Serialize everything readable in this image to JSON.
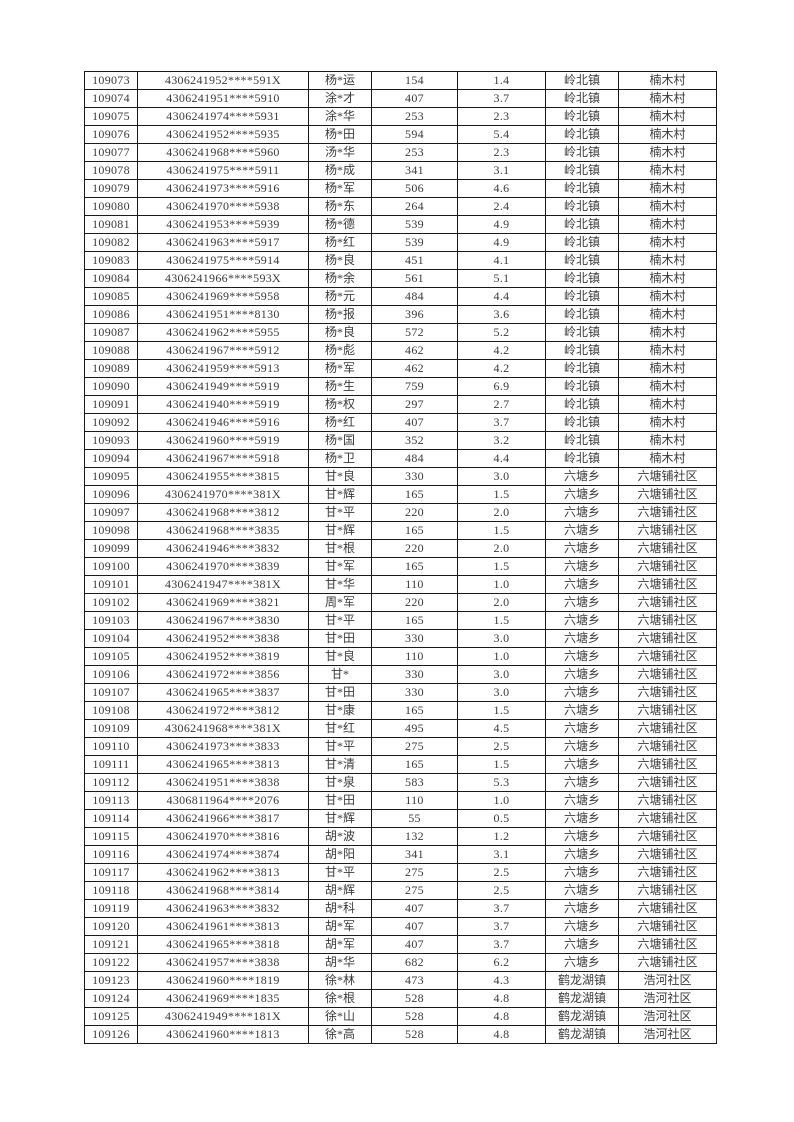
{
  "page": {
    "background_color": "#ffffff",
    "border_color": "#1a1a1a",
    "text_color": "#3b3b3b"
  },
  "table": {
    "rows": [
      [
        "109073",
        "4306241952****591X",
        "杨*运",
        "154",
        "1.4",
        "岭北镇",
        "楠木村"
      ],
      [
        "109074",
        "4306241951****5910",
        "涂*才",
        "407",
        "3.7",
        "岭北镇",
        "楠木村"
      ],
      [
        "109075",
        "4306241974****5931",
        "涂*华",
        "253",
        "2.3",
        "岭北镇",
        "楠木村"
      ],
      [
        "109076",
        "4306241952****5935",
        "杨*田",
        "594",
        "5.4",
        "岭北镇",
        "楠木村"
      ],
      [
        "109077",
        "4306241968****5960",
        "汤*华",
        "253",
        "2.3",
        "岭北镇",
        "楠木村"
      ],
      [
        "109078",
        "4306241975****5911",
        "杨*成",
        "341",
        "3.1",
        "岭北镇",
        "楠木村"
      ],
      [
        "109079",
        "4306241973****5916",
        "杨*军",
        "506",
        "4.6",
        "岭北镇",
        "楠木村"
      ],
      [
        "109080",
        "4306241970****5938",
        "杨*东",
        "264",
        "2.4",
        "岭北镇",
        "楠木村"
      ],
      [
        "109081",
        "4306241953****5939",
        "杨*德",
        "539",
        "4.9",
        "岭北镇",
        "楠木村"
      ],
      [
        "109082",
        "4306241963****5917",
        "杨*红",
        "539",
        "4.9",
        "岭北镇",
        "楠木村"
      ],
      [
        "109083",
        "4306241975****5914",
        "杨*良",
        "451",
        "4.1",
        "岭北镇",
        "楠木村"
      ],
      [
        "109084",
        "4306241966****593X",
        "杨*余",
        "561",
        "5.1",
        "岭北镇",
        "楠木村"
      ],
      [
        "109085",
        "4306241969****5958",
        "杨*元",
        "484",
        "4.4",
        "岭北镇",
        "楠木村"
      ],
      [
        "109086",
        "4306241951****8130",
        "杨*报",
        "396",
        "3.6",
        "岭北镇",
        "楠木村"
      ],
      [
        "109087",
        "4306241962****5955",
        "杨*良",
        "572",
        "5.2",
        "岭北镇",
        "楠木村"
      ],
      [
        "109088",
        "4306241967****5912",
        "杨*彪",
        "462",
        "4.2",
        "岭北镇",
        "楠木村"
      ],
      [
        "109089",
        "4306241959****5913",
        "杨*军",
        "462",
        "4.2",
        "岭北镇",
        "楠木村"
      ],
      [
        "109090",
        "4306241949****5919",
        "杨*生",
        "759",
        "6.9",
        "岭北镇",
        "楠木村"
      ],
      [
        "109091",
        "4306241940****5919",
        "杨*权",
        "297",
        "2.7",
        "岭北镇",
        "楠木村"
      ],
      [
        "109092",
        "4306241946****5916",
        "杨*红",
        "407",
        "3.7",
        "岭北镇",
        "楠木村"
      ],
      [
        "109093",
        "4306241960****5919",
        "杨*国",
        "352",
        "3.2",
        "岭北镇",
        "楠木村"
      ],
      [
        "109094",
        "4306241967****5918",
        "杨*卫",
        "484",
        "4.4",
        "岭北镇",
        "楠木村"
      ],
      [
        "109095",
        "4306241955****3815",
        "甘*良",
        "330",
        "3.0",
        "六塘乡",
        "六塘铺社区"
      ],
      [
        "109096",
        "4306241970****381X",
        "甘*辉",
        "165",
        "1.5",
        "六塘乡",
        "六塘铺社区"
      ],
      [
        "109097",
        "4306241968****3812",
        "甘*平",
        "220",
        "2.0",
        "六塘乡",
        "六塘铺社区"
      ],
      [
        "109098",
        "4306241968****3835",
        "甘*辉",
        "165",
        "1.5",
        "六塘乡",
        "六塘铺社区"
      ],
      [
        "109099",
        "4306241946****3832",
        "甘*根",
        "220",
        "2.0",
        "六塘乡",
        "六塘铺社区"
      ],
      [
        "109100",
        "4306241970****3839",
        "甘*军",
        "165",
        "1.5",
        "六塘乡",
        "六塘铺社区"
      ],
      [
        "109101",
        "4306241947****381X",
        "甘*华",
        "110",
        "1.0",
        "六塘乡",
        "六塘铺社区"
      ],
      [
        "109102",
        "4306241969****3821",
        "周*军",
        "220",
        "2.0",
        "六塘乡",
        "六塘铺社区"
      ],
      [
        "109103",
        "4306241967****3830",
        "甘*平",
        "165",
        "1.5",
        "六塘乡",
        "六塘铺社区"
      ],
      [
        "109104",
        "4306241952****3838",
        "甘*田",
        "330",
        "3.0",
        "六塘乡",
        "六塘铺社区"
      ],
      [
        "109105",
        "4306241952****3819",
        "甘*良",
        "110",
        "1.0",
        "六塘乡",
        "六塘铺社区"
      ],
      [
        "109106",
        "4306241972****3856",
        "甘*",
        "330",
        "3.0",
        "六塘乡",
        "六塘铺社区"
      ],
      [
        "109107",
        "4306241965****3837",
        "甘*田",
        "330",
        "3.0",
        "六塘乡",
        "六塘铺社区"
      ],
      [
        "109108",
        "4306241972****3812",
        "甘*康",
        "165",
        "1.5",
        "六塘乡",
        "六塘铺社区"
      ],
      [
        "109109",
        "4306241968****381X",
        "甘*红",
        "495",
        "4.5",
        "六塘乡",
        "六塘铺社区"
      ],
      [
        "109110",
        "4306241973****3833",
        "甘*平",
        "275",
        "2.5",
        "六塘乡",
        "六塘铺社区"
      ],
      [
        "109111",
        "4306241965****3813",
        "甘*清",
        "165",
        "1.5",
        "六塘乡",
        "六塘铺社区"
      ],
      [
        "109112",
        "4306241951****3838",
        "甘*泉",
        "583",
        "5.3",
        "六塘乡",
        "六塘铺社区"
      ],
      [
        "109113",
        "4306811964****2076",
        "甘*田",
        "110",
        "1.0",
        "六塘乡",
        "六塘铺社区"
      ],
      [
        "109114",
        "4306241966****3817",
        "甘*辉",
        "55",
        "0.5",
        "六塘乡",
        "六塘铺社区"
      ],
      [
        "109115",
        "4306241970****3816",
        "胡*波",
        "132",
        "1.2",
        "六塘乡",
        "六塘铺社区"
      ],
      [
        "109116",
        "4306241974****3874",
        "胡*阳",
        "341",
        "3.1",
        "六塘乡",
        "六塘铺社区"
      ],
      [
        "109117",
        "4306241962****3813",
        "甘*平",
        "275",
        "2.5",
        "六塘乡",
        "六塘铺社区"
      ],
      [
        "109118",
        "4306241968****3814",
        "胡*辉",
        "275",
        "2.5",
        "六塘乡",
        "六塘铺社区"
      ],
      [
        "109119",
        "4306241963****3832",
        "胡*科",
        "407",
        "3.7",
        "六塘乡",
        "六塘铺社区"
      ],
      [
        "109120",
        "4306241961****3813",
        "胡*军",
        "407",
        "3.7",
        "六塘乡",
        "六塘铺社区"
      ],
      [
        "109121",
        "4306241965****3818",
        "胡*军",
        "407",
        "3.7",
        "六塘乡",
        "六塘铺社区"
      ],
      [
        "109122",
        "4306241957****3838",
        "胡*华",
        "682",
        "6.2",
        "六塘乡",
        "六塘铺社区"
      ],
      [
        "109123",
        "4306241960****1819",
        "徐*林",
        "473",
        "4.3",
        "鹤龙湖镇",
        "浩河社区"
      ],
      [
        "109124",
        "4306241969****1835",
        "徐*根",
        "528",
        "4.8",
        "鹤龙湖镇",
        "浩河社区"
      ],
      [
        "109125",
        "4306241949****181X",
        "徐*山",
        "528",
        "4.8",
        "鹤龙湖镇",
        "浩河社区"
      ],
      [
        "109126",
        "4306241960****1813",
        "徐*高",
        "528",
        "4.8",
        "鹤龙湖镇",
        "浩河社区"
      ]
    ]
  }
}
